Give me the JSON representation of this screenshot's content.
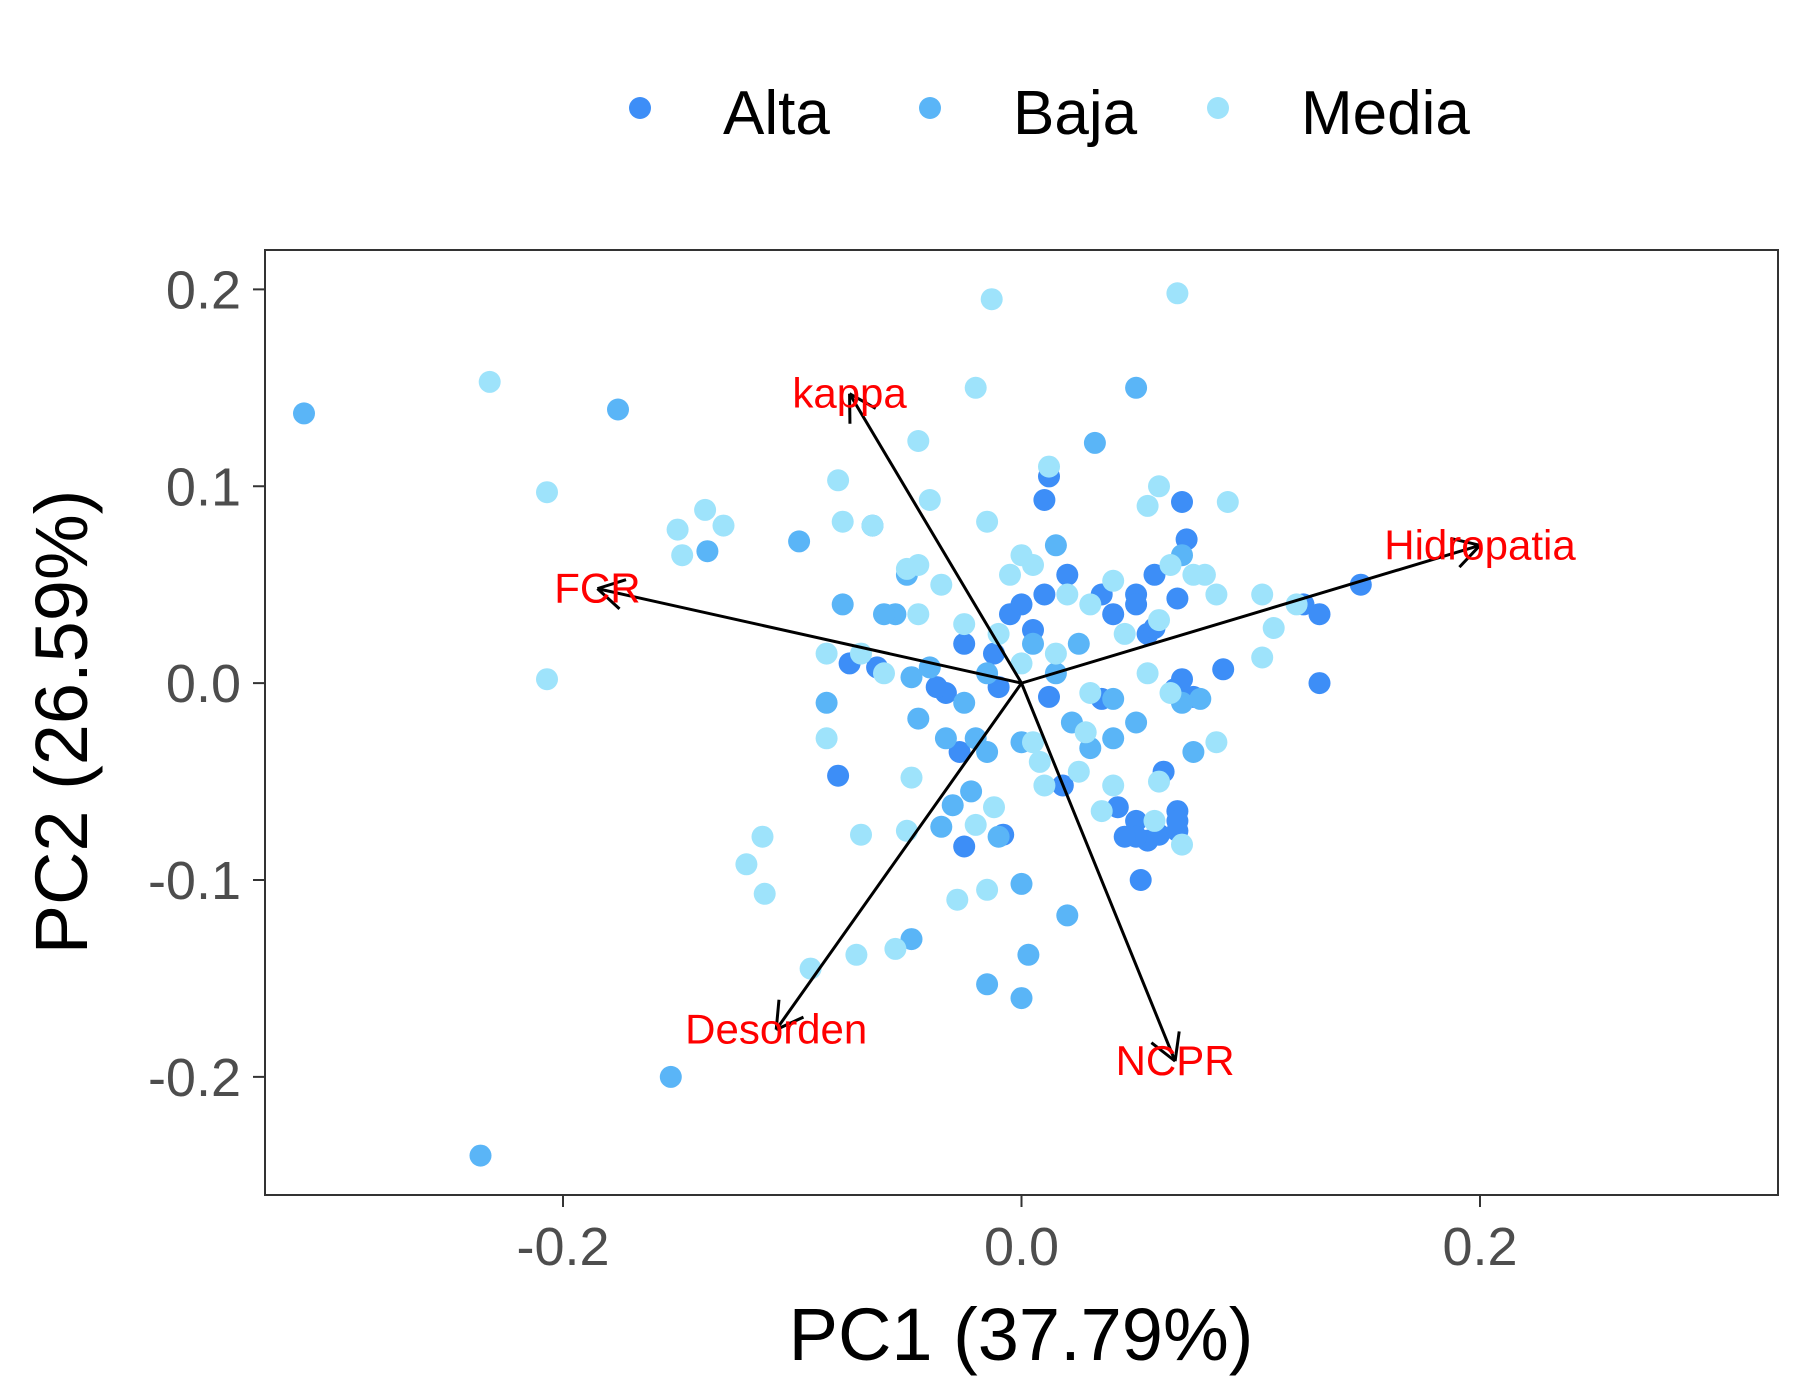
{
  "chart_data": {
    "type": "scatter",
    "subtype": "pca-biplot",
    "title": "",
    "xlabel": "PC1 (37.79%)",
    "ylabel": "PC2 (26.59%)",
    "xlim": [
      -0.33,
      0.33
    ],
    "ylim": [
      -0.26,
      0.22
    ],
    "xticks": [
      -0.2,
      0.0,
      0.2
    ],
    "yticks": [
      -0.2,
      -0.1,
      0.0,
      0.1,
      0.2
    ],
    "xtick_labels": [
      "-0.2",
      "0.0",
      "0.2"
    ],
    "ytick_labels": [
      "-0.2",
      "-0.1",
      "0.0",
      "0.1",
      "0.2"
    ],
    "grid": false,
    "legend_position": "top",
    "series": [
      {
        "name": "Alta",
        "color": "#3d8ef7",
        "points": [
          [
            0.01,
            0.045
          ],
          [
            0.05,
            0.045
          ],
          [
            0.07,
            0.092
          ],
          [
            0.072,
            0.073
          ],
          [
            0.012,
            0.105
          ],
          [
            0.01,
            0.093
          ],
          [
            0.02,
            0.055
          ],
          [
            0.035,
            0.045
          ],
          [
            0.05,
            0.04
          ],
          [
            0.058,
            0.055
          ],
          [
            0.068,
            0.043
          ],
          [
            0.123,
            0.04
          ],
          [
            0.13,
            0.035
          ],
          [
            0.148,
            0.05
          ],
          [
            0.13,
            0.0
          ],
          [
            0.088,
            0.007
          ],
          [
            0.067,
            -0.003
          ],
          [
            0.07,
            0.002
          ],
          [
            0.075,
            -0.007
          ],
          [
            0.035,
            -0.008
          ],
          [
            0.062,
            -0.045
          ],
          [
            0.042,
            -0.063
          ],
          [
            0.05,
            -0.07
          ],
          [
            0.06,
            -0.077
          ],
          [
            0.068,
            -0.065
          ],
          [
            0.068,
            -0.075
          ],
          [
            0.055,
            -0.08
          ],
          [
            0.05,
            -0.078
          ],
          [
            0.045,
            -0.078
          ],
          [
            0.068,
            -0.07
          ],
          [
            0.052,
            -0.1
          ],
          [
            0.018,
            -0.052
          ],
          [
            -0.008,
            -0.077
          ],
          [
            -0.025,
            -0.083
          ],
          [
            -0.027,
            -0.035
          ],
          [
            -0.033,
            -0.005
          ],
          [
            -0.037,
            -0.002
          ],
          [
            -0.025,
            0.02
          ],
          [
            -0.012,
            0.015
          ],
          [
            -0.01,
            -0.002
          ],
          [
            -0.005,
            0.035
          ],
          [
            0.0,
            0.04
          ],
          [
            0.005,
            0.027
          ],
          [
            0.04,
            0.035
          ],
          [
            0.055,
            0.025
          ],
          [
            -0.063,
            0.008
          ],
          [
            -0.075,
            0.01
          ],
          [
            -0.08,
            -0.047
          ],
          [
            0.058,
            0.028
          ],
          [
            0.012,
            -0.007
          ]
        ]
      },
      {
        "name": "Baja",
        "color": "#5ab5f7",
        "points": [
          [
            -0.313,
            0.137
          ],
          [
            -0.176,
            0.139
          ],
          [
            -0.236,
            -0.24
          ],
          [
            -0.153,
            -0.2
          ],
          [
            -0.137,
            0.067
          ],
          [
            -0.097,
            0.072
          ],
          [
            -0.065,
            0.08
          ],
          [
            -0.078,
            0.04
          ],
          [
            -0.055,
            0.035
          ],
          [
            -0.048,
            0.003
          ],
          [
            -0.04,
            0.008
          ],
          [
            -0.045,
            -0.018
          ],
          [
            -0.033,
            -0.028
          ],
          [
            -0.025,
            -0.01
          ],
          [
            -0.015,
            0.005
          ],
          [
            -0.085,
            -0.01
          ],
          [
            -0.02,
            -0.028
          ],
          [
            -0.015,
            -0.035
          ],
          [
            -0.022,
            -0.055
          ],
          [
            -0.03,
            -0.062
          ],
          [
            -0.035,
            -0.073
          ],
          [
            -0.048,
            -0.13
          ],
          [
            -0.015,
            -0.153
          ],
          [
            0.0,
            -0.16
          ],
          [
            0.003,
            -0.138
          ],
          [
            0.02,
            -0.118
          ],
          [
            0.0,
            -0.102
          ],
          [
            -0.01,
            -0.078
          ],
          [
            0.022,
            -0.02
          ],
          [
            0.03,
            -0.033
          ],
          [
            0.04,
            -0.008
          ],
          [
            0.05,
            -0.02
          ],
          [
            0.07,
            -0.01
          ],
          [
            0.078,
            -0.008
          ],
          [
            0.075,
            -0.035
          ],
          [
            0.07,
            0.065
          ],
          [
            0.05,
            0.15
          ],
          [
            0.032,
            0.122
          ],
          [
            0.015,
            0.07
          ],
          [
            0.005,
            0.02
          ],
          [
            -0.05,
            0.055
          ],
          [
            -0.06,
            0.035
          ],
          [
            0.025,
            0.02
          ],
          [
            0.015,
            0.005
          ],
          [
            0.0,
            -0.03
          ],
          [
            0.04,
            -0.028
          ]
        ]
      },
      {
        "name": "Media",
        "color": "#9ee3fb",
        "points": [
          [
            -0.232,
            0.153
          ],
          [
            -0.207,
            0.097
          ],
          [
            -0.207,
            0.002
          ],
          [
            -0.15,
            0.078
          ],
          [
            -0.148,
            0.065
          ],
          [
            -0.138,
            0.088
          ],
          [
            -0.13,
            0.08
          ],
          [
            -0.08,
            0.103
          ],
          [
            -0.078,
            0.082
          ],
          [
            -0.065,
            0.08
          ],
          [
            -0.045,
            0.123
          ],
          [
            -0.04,
            0.093
          ],
          [
            -0.05,
            0.058
          ],
          [
            -0.045,
            0.06
          ],
          [
            -0.035,
            0.05
          ],
          [
            -0.045,
            0.035
          ],
          [
            -0.085,
            0.015
          ],
          [
            -0.07,
            0.015
          ],
          [
            -0.06,
            0.005
          ],
          [
            -0.085,
            -0.028
          ],
          [
            -0.048,
            -0.048
          ],
          [
            -0.05,
            -0.075
          ],
          [
            -0.07,
            -0.077
          ],
          [
            -0.113,
            -0.078
          ],
          [
            -0.12,
            -0.092
          ],
          [
            -0.112,
            -0.107
          ],
          [
            -0.092,
            -0.145
          ],
          [
            -0.072,
            -0.138
          ],
          [
            -0.055,
            -0.135
          ],
          [
            -0.028,
            -0.11
          ],
          [
            -0.015,
            -0.105
          ],
          [
            -0.02,
            -0.072
          ],
          [
            -0.012,
            -0.063
          ],
          [
            0.005,
            -0.03
          ],
          [
            0.008,
            -0.04
          ],
          [
            0.01,
            -0.052
          ],
          [
            0.025,
            -0.045
          ],
          [
            0.028,
            -0.025
          ],
          [
            0.04,
            -0.052
          ],
          [
            0.035,
            -0.065
          ],
          [
            0.07,
            -0.082
          ],
          [
            0.058,
            -0.07
          ],
          [
            0.03,
            0.04
          ],
          [
            0.02,
            0.045
          ],
          [
            0.04,
            0.052
          ],
          [
            0.045,
            0.025
          ],
          [
            0.055,
            0.005
          ],
          [
            0.06,
            0.032
          ],
          [
            0.065,
            0.06
          ],
          [
            0.075,
            0.055
          ],
          [
            0.08,
            0.055
          ],
          [
            0.085,
            0.045
          ],
          [
            0.105,
            0.045
          ],
          [
            0.11,
            0.028
          ],
          [
            0.105,
            0.013
          ],
          [
            0.085,
            -0.03
          ],
          [
            0.09,
            0.092
          ],
          [
            0.06,
            0.1
          ],
          [
            0.055,
            0.09
          ],
          [
            -0.015,
            0.082
          ],
          [
            -0.02,
            0.15
          ],
          [
            -0.013,
            0.195
          ],
          [
            0.068,
            0.198
          ],
          [
            0.012,
            0.11
          ],
          [
            0.0,
            0.065
          ],
          [
            -0.005,
            0.055
          ],
          [
            0.005,
            0.06
          ],
          [
            -0.01,
            0.025
          ],
          [
            -0.025,
            0.03
          ],
          [
            0.0,
            0.01
          ],
          [
            0.065,
            -0.005
          ],
          [
            0.06,
            -0.05
          ],
          [
            0.12,
            0.04
          ],
          [
            0.03,
            -0.005
          ],
          [
            0.015,
            0.015
          ]
        ]
      }
    ],
    "loadings": [
      {
        "label": "kappa",
        "x": -0.075,
        "y": 0.147
      },
      {
        "label": "FCR",
        "x": -0.185,
        "y": 0.048
      },
      {
        "label": "Hidropatia",
        "x": 0.2,
        "y": 0.07
      },
      {
        "label": "Desorden",
        "x": -0.107,
        "y": -0.176
      },
      {
        "label": "NCPR",
        "x": 0.067,
        "y": -0.192
      }
    ],
    "loading_color": "#000000",
    "loading_label_color": "#ff0000"
  }
}
